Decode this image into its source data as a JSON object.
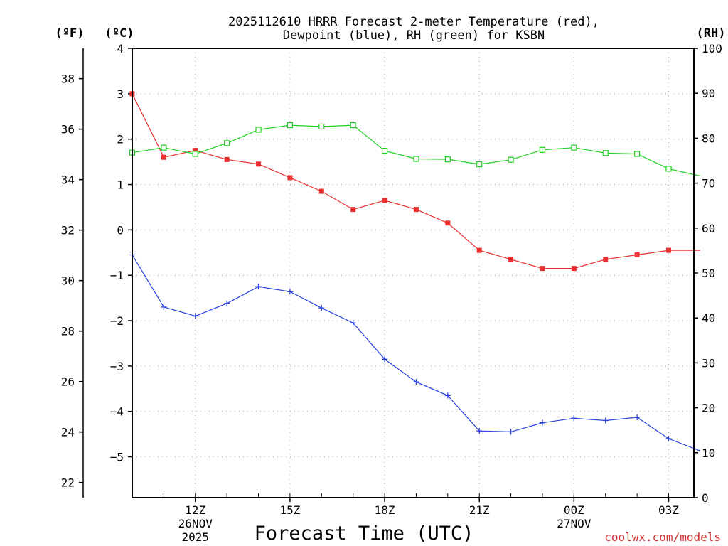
{
  "chart_data": {
    "type": "line",
    "title_line1": "2025112610 HRRR Forecast 2-meter Temperature (red),",
    "title_line2": "Dewpoint (blue), RH (green) for KSBN",
    "xlabel": "Forecast Time (UTC)",
    "units": {
      "fahrenheit": "(ºF)",
      "celsius": "(ºC)",
      "rh": "(RH)"
    },
    "credit": "coolwx.com/models",
    "x_hours": [
      10,
      11,
      12,
      13,
      14,
      15,
      16,
      17,
      18,
      19,
      20,
      21,
      22,
      23,
      24,
      25,
      26,
      27,
      28
    ],
    "xlim": [
      10,
      27.8
    ],
    "x_ticks": [
      {
        "hour": 12,
        "label": "12Z",
        "date1": "26NOV",
        "date2": "2025"
      },
      {
        "hour": 15,
        "label": "15Z",
        "date1": "",
        "date2": ""
      },
      {
        "hour": 18,
        "label": "18Z",
        "date1": "",
        "date2": ""
      },
      {
        "hour": 21,
        "label": "21Z",
        "date1": "",
        "date2": ""
      },
      {
        "hour": 24,
        "label": "00Z",
        "date1": "27NOV",
        "date2": ""
      },
      {
        "hour": 27,
        "label": "03Z",
        "date1": "",
        "date2": ""
      }
    ],
    "celsius_axis": {
      "ylim": [
        -5.9,
        4.0
      ],
      "ticks": [
        4,
        3,
        2,
        1,
        0,
        -1,
        -2,
        -3,
        -4,
        -5
      ],
      "tick_labels": [
        "4",
        "3",
        "2",
        "1",
        "0",
        "−1",
        "−2",
        "−3",
        "−4",
        "−5"
      ]
    },
    "fahrenheit_axis": {
      "ylim": [
        21.4,
        39.2
      ],
      "ticks": [
        38,
        36,
        34,
        32,
        30,
        28,
        26,
        24,
        22
      ],
      "tick_labels": [
        "38",
        "36",
        "34",
        "32",
        "30",
        "28",
        "26",
        "24",
        "22"
      ]
    },
    "rh_axis": {
      "ylim": [
        0,
        100
      ],
      "ticks": [
        100,
        90,
        80,
        70,
        60,
        50,
        40,
        30,
        20,
        10,
        0
      ],
      "tick_labels": [
        "100",
        "90",
        "80",
        "70",
        "60",
        "50",
        "40",
        "30",
        "20",
        "10",
        "0"
      ]
    },
    "series": [
      {
        "name": "2-meter Temperature",
        "axis": "celsius",
        "color": "#e83030",
        "marker": "filled-square",
        "values": [
          3.0,
          1.6,
          1.75,
          1.55,
          1.45,
          1.15,
          0.85,
          0.45,
          0.65,
          0.45,
          0.15,
          -0.45,
          -0.65,
          -0.85,
          -0.85,
          -0.65,
          -0.55,
          -0.45,
          -0.45
        ]
      },
      {
        "name": "Dewpoint",
        "axis": "celsius",
        "color": "#2840e0",
        "marker": "plus",
        "values": [
          -0.55,
          -1.7,
          -1.9,
          -1.62,
          -1.25,
          -1.36,
          -1.72,
          -2.05,
          -2.85,
          -3.35,
          -3.65,
          -4.43,
          -4.45,
          -4.25,
          -4.15,
          -4.2,
          -4.13,
          -4.6,
          -4.87
        ]
      },
      {
        "name": "RH",
        "axis": "rh",
        "color": "#20d020",
        "marker": "open-square",
        "values": [
          76.8,
          77.9,
          76.5,
          78.9,
          81.9,
          82.9,
          82.6,
          82.9,
          77.2,
          75.4,
          75.3,
          74.2,
          75.2,
          77.4,
          77.9,
          76.7,
          76.5,
          73.2,
          71.6
        ]
      }
    ]
  }
}
